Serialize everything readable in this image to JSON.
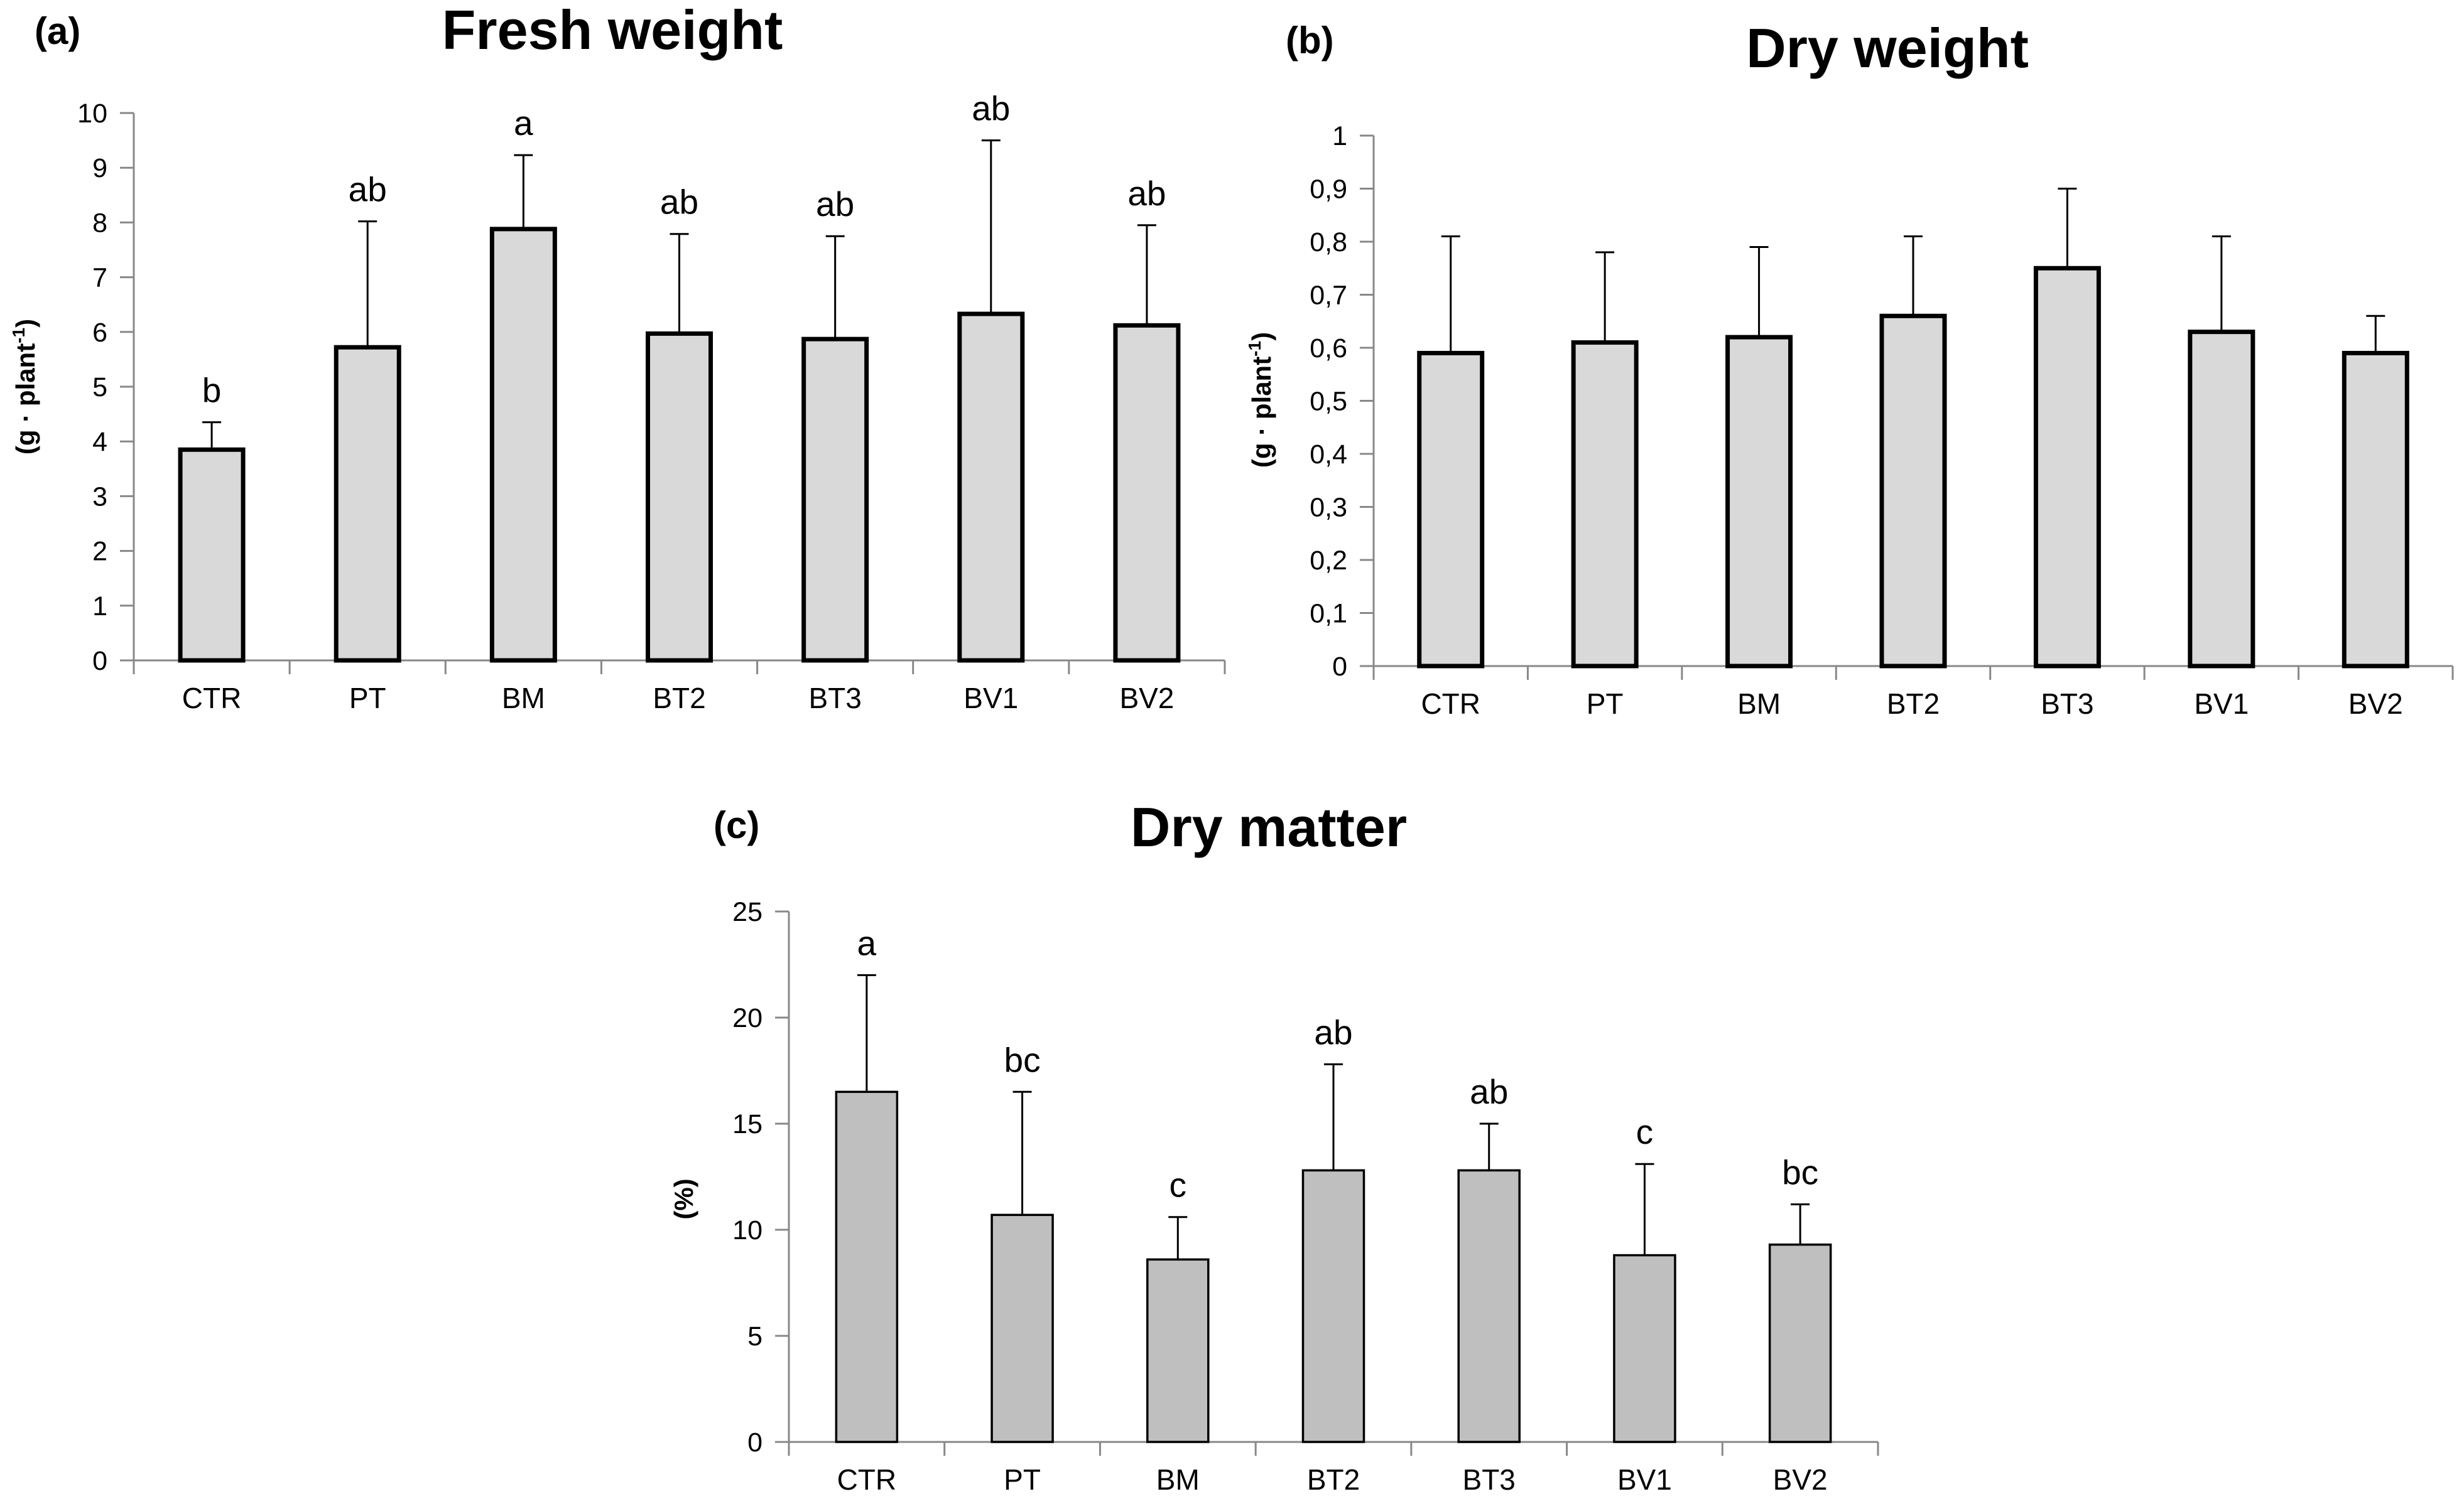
{
  "chart_data": [
    {
      "type": "bar",
      "panel": "(a)",
      "title": "Fresh weight",
      "ylabel": "(g · plant",
      "ylabel_sup": "-1",
      "ylabel_close": ")",
      "ylim": [
        0,
        10
      ],
      "yticks": [
        "0",
        "1",
        "2",
        "3",
        "4",
        "5",
        "6",
        "7",
        "8",
        "9",
        "10"
      ],
      "ytick_values": [
        0,
        1,
        2,
        3,
        4,
        5,
        6,
        7,
        8,
        9,
        10
      ],
      "categories": [
        "CTR",
        "PT",
        "BM",
        "BT2",
        "BT3",
        "BV1",
        "BV2"
      ],
      "values": [
        3.85,
        5.72,
        7.88,
        5.97,
        5.87,
        6.33,
        6.12
      ],
      "errors": [
        0.5,
        2.3,
        1.35,
        1.82,
        1.88,
        3.17,
        1.83
      ],
      "letters": [
        "b",
        "ab",
        "a",
        "ab",
        "ab",
        "ab",
        "ab"
      ],
      "bar_color": "#d9d9d9",
      "bar_stroke_width": "thick",
      "grid": false
    },
    {
      "type": "bar",
      "panel": "(b)",
      "title": "Dry weight",
      "ylabel": "(g · plant",
      "ylabel_sup": "-1",
      "ylabel_close": ")",
      "ylim": [
        0,
        1
      ],
      "yticks": [
        "0",
        "0,1",
        "0,2",
        "0,3",
        "0,4",
        "0,5",
        "0,6",
        "0,7",
        "0,8",
        "0,9",
        "1"
      ],
      "ytick_values": [
        0,
        0.1,
        0.2,
        0.3,
        0.4,
        0.5,
        0.6,
        0.7,
        0.8,
        0.9,
        1
      ],
      "categories": [
        "CTR",
        "PT",
        "BM",
        "BT2",
        "BT3",
        "BV1",
        "BV2"
      ],
      "values": [
        0.59,
        0.61,
        0.62,
        0.66,
        0.75,
        0.63,
        0.59
      ],
      "errors": [
        0.22,
        0.17,
        0.17,
        0.15,
        0.15,
        0.18,
        0.07
      ],
      "letters": [
        "",
        "",
        "",
        "",
        "",
        "",
        ""
      ],
      "bar_color": "#d9d9d9",
      "bar_stroke_width": "thick",
      "grid": false
    },
    {
      "type": "bar",
      "panel": "(c)",
      "title": "Dry matter",
      "ylabel": "(%)",
      "ylabel_sup": "",
      "ylabel_close": "",
      "ylim": [
        0,
        25
      ],
      "yticks": [
        "0",
        "5",
        "10",
        "15",
        "20",
        "25"
      ],
      "ytick_values": [
        0,
        5,
        10,
        15,
        20,
        25
      ],
      "categories": [
        "CTR",
        "PT",
        "BM",
        "BT2",
        "BT3",
        "BV1",
        "BV2"
      ],
      "values": [
        16.5,
        10.7,
        8.6,
        12.8,
        12.8,
        8.8,
        9.3
      ],
      "errors": [
        5.5,
        5.8,
        2.0,
        5.0,
        2.2,
        4.3,
        1.9
      ],
      "letters": [
        "a",
        "bc",
        "c",
        "ab",
        "ab",
        "c",
        "bc"
      ],
      "bar_color": "#bfbfbf",
      "bar_stroke_width": "thin",
      "grid": false
    }
  ]
}
